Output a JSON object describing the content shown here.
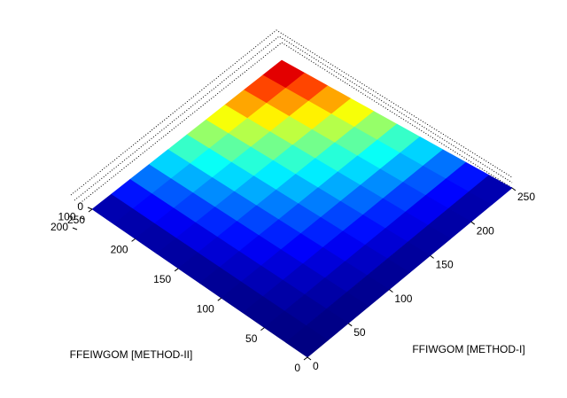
{
  "chart_data": {
    "type": "surface",
    "colormap": "jet",
    "xlabel": "FFIWGOM [METHOD-I]",
    "ylabel": "FFEIWGOM [METHOD-II]",
    "x": [
      0,
      25,
      50,
      75,
      100,
      125,
      150,
      175,
      200,
      225,
      250
    ],
    "y": [
      0,
      25,
      50,
      75,
      100,
      125,
      150,
      175,
      200,
      225,
      250
    ],
    "z": [
      [
        0,
        0,
        0,
        0,
        0,
        0,
        0,
        0,
        0,
        0,
        0
      ],
      [
        0,
        2,
        4,
        6,
        8,
        10,
        12,
        14,
        16,
        18,
        20
      ],
      [
        0,
        4,
        8,
        12,
        16,
        20,
        24,
        28,
        32,
        36,
        40
      ],
      [
        0,
        6,
        12,
        18,
        24,
        30,
        36,
        42,
        48,
        54,
        60
      ],
      [
        0,
        8,
        16,
        24,
        32,
        40,
        48,
        56,
        64,
        72,
        80
      ],
      [
        0,
        10,
        20,
        30,
        40,
        50,
        60,
        70,
        80,
        90,
        100
      ],
      [
        0,
        12,
        24,
        36,
        48,
        60,
        72,
        84,
        96,
        108,
        120
      ],
      [
        0,
        14,
        28,
        42,
        56,
        70,
        84,
        98,
        112,
        126,
        140
      ],
      [
        0,
        16,
        32,
        48,
        64,
        80,
        96,
        112,
        128,
        144,
        160
      ],
      [
        0,
        18,
        36,
        54,
        72,
        90,
        108,
        126,
        144,
        162,
        180
      ],
      [
        0,
        20,
        40,
        60,
        80,
        100,
        120,
        140,
        160,
        180,
        200
      ]
    ],
    "xlim": [
      0,
      250
    ],
    "ylim": [
      0,
      250
    ],
    "zlim": [
      0,
      200
    ],
    "xticks": [
      0,
      50,
      100,
      150,
      200,
      250
    ],
    "yticks": [
      0,
      50,
      100,
      150,
      200,
      250
    ],
    "zticks": [
      0,
      100,
      200
    ]
  }
}
